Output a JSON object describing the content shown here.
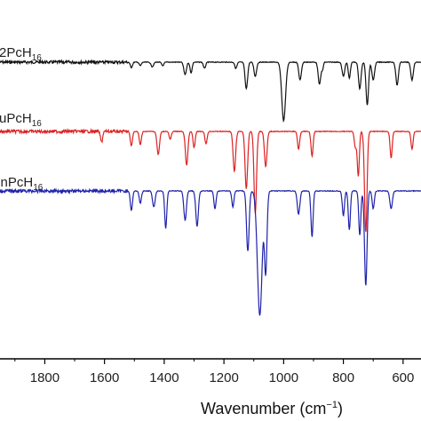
{
  "chart_data": {
    "type": "line",
    "title": "",
    "xlabel": {
      "main": "Wavenumber (cm",
      "sup": "−1",
      "end": ")"
    },
    "ylabel": "",
    "xlim": [
      1950,
      540
    ],
    "x_reversed": true,
    "xticks": [
      1800,
      1600,
      1400,
      1200,
      1000,
      800,
      600
    ],
    "xtick_labels": [
      "1800",
      "1600",
      "1400",
      "1200",
      "1000",
      "800",
      "600"
    ],
    "grid": false,
    "legend": "inline labels above each trace (left side, partially cut off)",
    "series": [
      {
        "label_main": "2PcH",
        "label_sub": "16",
        "color": "#111111",
        "baseline": 70,
        "bands": [
          {
            "x": 1510,
            "depth": 6,
            "width": 5
          },
          {
            "x": 1480,
            "depth": 4,
            "width": 5
          },
          {
            "x": 1440,
            "depth": 5,
            "width": 6
          },
          {
            "x": 1405,
            "depth": 4,
            "width": 5
          },
          {
            "x": 1330,
            "depth": 14,
            "width": 6
          },
          {
            "x": 1310,
            "depth": 12,
            "width": 5
          },
          {
            "x": 1265,
            "depth": 7,
            "width": 5
          },
          {
            "x": 1160,
            "depth": 7,
            "width": 5
          },
          {
            "x": 1125,
            "depth": 30,
            "width": 6
          },
          {
            "x": 1095,
            "depth": 16,
            "width": 6
          },
          {
            "x": 1000,
            "depth": 66,
            "width": 9
          },
          {
            "x": 945,
            "depth": 20,
            "width": 6
          },
          {
            "x": 880,
            "depth": 25,
            "width": 6
          },
          {
            "x": 870,
            "depth": 8,
            "width": 4
          },
          {
            "x": 800,
            "depth": 16,
            "width": 6
          },
          {
            "x": 780,
            "depth": 18,
            "width": 5
          },
          {
            "x": 745,
            "depth": 30,
            "width": 6
          },
          {
            "x": 720,
            "depth": 48,
            "width": 6
          },
          {
            "x": 700,
            "depth": 20,
            "width": 6
          },
          {
            "x": 620,
            "depth": 26,
            "width": 6
          },
          {
            "x": 570,
            "depth": 20,
            "width": 6
          }
        ]
      },
      {
        "label_main": "uPcH",
        "label_sub": "16",
        "color": "#dd2222",
        "baseline": 148,
        "bands": [
          {
            "x": 1610,
            "depth": 12,
            "width": 5
          },
          {
            "x": 1510,
            "depth": 16,
            "width": 5
          },
          {
            "x": 1480,
            "depth": 15,
            "width": 5
          },
          {
            "x": 1420,
            "depth": 26,
            "width": 6
          },
          {
            "x": 1380,
            "depth": 9,
            "width": 5
          },
          {
            "x": 1325,
            "depth": 38,
            "width": 6
          },
          {
            "x": 1300,
            "depth": 18,
            "width": 5
          },
          {
            "x": 1260,
            "depth": 14,
            "width": 5
          },
          {
            "x": 1165,
            "depth": 45,
            "width": 6
          },
          {
            "x": 1125,
            "depth": 65,
            "width": 6
          },
          {
            "x": 1095,
            "depth": 92,
            "width": 6
          },
          {
            "x": 1060,
            "depth": 40,
            "width": 6
          },
          {
            "x": 950,
            "depth": 20,
            "width": 5
          },
          {
            "x": 905,
            "depth": 28,
            "width": 5
          },
          {
            "x": 760,
            "depth": 18,
            "width": 5
          },
          {
            "x": 750,
            "depth": 50,
            "width": 5
          },
          {
            "x": 725,
            "depth": 114,
            "width": 6
          },
          {
            "x": 640,
            "depth": 30,
            "width": 5
          },
          {
            "x": 570,
            "depth": 20,
            "width": 5
          }
        ]
      },
      {
        "label_main": "MnPcH",
        "label_sub": "16",
        "color": "#1f22aa",
        "baseline": 215,
        "bands": [
          {
            "x": 1510,
            "depth": 22,
            "width": 5
          },
          {
            "x": 1480,
            "depth": 14,
            "width": 5
          },
          {
            "x": 1435,
            "depth": 18,
            "width": 6
          },
          {
            "x": 1395,
            "depth": 42,
            "width": 5
          },
          {
            "x": 1330,
            "depth": 33,
            "width": 6
          },
          {
            "x": 1290,
            "depth": 40,
            "width": 6
          },
          {
            "x": 1230,
            "depth": 20,
            "width": 5
          },
          {
            "x": 1170,
            "depth": 18,
            "width": 5
          },
          {
            "x": 1120,
            "depth": 68,
            "width": 6
          },
          {
            "x": 1080,
            "depth": 140,
            "width": 11
          },
          {
            "x": 1060,
            "depth": 90,
            "width": 6
          },
          {
            "x": 950,
            "depth": 26,
            "width": 6
          },
          {
            "x": 905,
            "depth": 52,
            "width": 5
          },
          {
            "x": 800,
            "depth": 28,
            "width": 5
          },
          {
            "x": 780,
            "depth": 44,
            "width": 5
          },
          {
            "x": 745,
            "depth": 50,
            "width": 5
          },
          {
            "x": 725,
            "depth": 107,
            "width": 6
          },
          {
            "x": 700,
            "depth": 20,
            "width": 5
          },
          {
            "x": 640,
            "depth": 20,
            "width": 6
          }
        ]
      }
    ]
  }
}
